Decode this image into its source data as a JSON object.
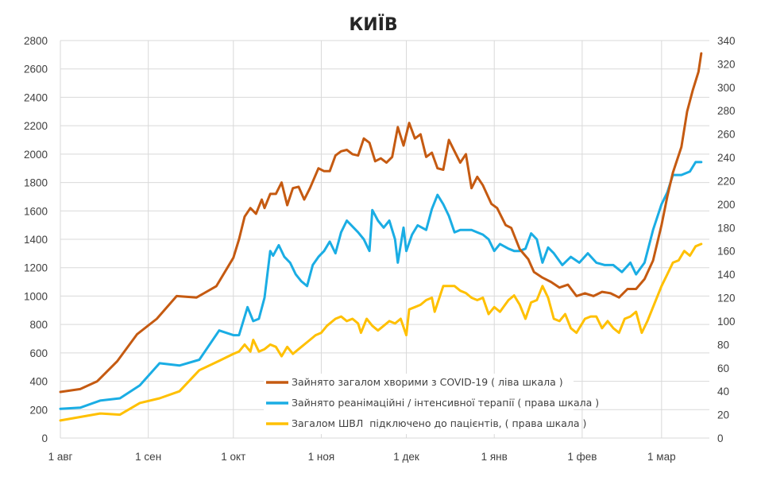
{
  "chart_data": {
    "type": "line",
    "title": "КИЇВ",
    "grid": true,
    "legend_placement": "bottom-center (inside plot)",
    "x_axis": {
      "type": "date",
      "range": [
        "2020-08-01",
        "2021-03-19"
      ],
      "ticks": [
        {
          "date": "2020-08-01",
          "label": "1 авг"
        },
        {
          "date": "2020-09-01",
          "label": "1 сен"
        },
        {
          "date": "2020-10-01",
          "label": "1 окт"
        },
        {
          "date": "2020-11-01",
          "label": "1 ноя"
        },
        {
          "date": "2020-12-01",
          "label": "1 дек"
        },
        {
          "date": "2021-01-01",
          "label": "1 янв"
        },
        {
          "date": "2021-02-01",
          "label": "1 фев"
        },
        {
          "date": "2021-03-01",
          "label": "1 мар"
        }
      ]
    },
    "y_left": {
      "range": [
        0,
        2800
      ],
      "ticks": [
        "0",
        "200",
        "400",
        "600",
        "800",
        "1000",
        "1200",
        "1400",
        "1600",
        "1800",
        "2000",
        "2200",
        "2400",
        "2600",
        "2800"
      ]
    },
    "y_right": {
      "range": [
        0,
        340
      ],
      "ticks": [
        "0",
        "20",
        "40",
        "60",
        "80",
        "100",
        "120",
        "140",
        "160",
        "180",
        "200",
        "220",
        "240",
        "260",
        "280",
        "300",
        "320",
        "340"
      ]
    },
    "series": [
      {
        "name": "Зайнято загалом хворими з COVID-19 ( ліва шкала )",
        "axis": "left",
        "color": "#C55A11",
        "points": [
          [
            "2020-08-01",
            325
          ],
          [
            "2020-08-08",
            345
          ],
          [
            "2020-08-14",
            400
          ],
          [
            "2020-08-21",
            540
          ],
          [
            "2020-08-28",
            730
          ],
          [
            "2020-09-04",
            840
          ],
          [
            "2020-09-11",
            1000
          ],
          [
            "2020-09-18",
            990
          ],
          [
            "2020-09-25",
            1070
          ],
          [
            "2020-10-01",
            1270
          ],
          [
            "2020-10-03",
            1400
          ],
          [
            "2020-10-05",
            1560
          ],
          [
            "2020-10-07",
            1620
          ],
          [
            "2020-10-09",
            1580
          ],
          [
            "2020-10-11",
            1680
          ],
          [
            "2020-10-12",
            1620
          ],
          [
            "2020-10-14",
            1720
          ],
          [
            "2020-10-16",
            1720
          ],
          [
            "2020-10-18",
            1800
          ],
          [
            "2020-10-20",
            1640
          ],
          [
            "2020-10-22",
            1760
          ],
          [
            "2020-10-24",
            1770
          ],
          [
            "2020-10-26",
            1680
          ],
          [
            "2020-10-28",
            1760
          ],
          [
            "2020-10-31",
            1900
          ],
          [
            "2020-11-02",
            1880
          ],
          [
            "2020-11-04",
            1880
          ],
          [
            "2020-11-06",
            1990
          ],
          [
            "2020-11-08",
            2020
          ],
          [
            "2020-11-10",
            2030
          ],
          [
            "2020-11-12",
            2000
          ],
          [
            "2020-11-14",
            1990
          ],
          [
            "2020-11-16",
            2110
          ],
          [
            "2020-11-18",
            2080
          ],
          [
            "2020-11-20",
            1950
          ],
          [
            "2020-11-22",
            1970
          ],
          [
            "2020-11-24",
            1940
          ],
          [
            "2020-11-26",
            1980
          ],
          [
            "2020-11-28",
            2190
          ],
          [
            "2020-11-30",
            2060
          ],
          [
            "2020-12-02",
            2220
          ],
          [
            "2020-12-04",
            2110
          ],
          [
            "2020-12-06",
            2140
          ],
          [
            "2020-12-08",
            1980
          ],
          [
            "2020-12-10",
            2010
          ],
          [
            "2020-12-12",
            1900
          ],
          [
            "2020-12-14",
            1890
          ],
          [
            "2020-12-16",
            2100
          ],
          [
            "2020-12-18",
            2020
          ],
          [
            "2020-12-20",
            1940
          ],
          [
            "2020-12-22",
            2000
          ],
          [
            "2020-12-24",
            1760
          ],
          [
            "2020-12-26",
            1840
          ],
          [
            "2020-12-28",
            1780
          ],
          [
            "2020-12-31",
            1650
          ],
          [
            "2021-01-02",
            1620
          ],
          [
            "2021-01-05",
            1500
          ],
          [
            "2021-01-07",
            1480
          ],
          [
            "2021-01-10",
            1330
          ],
          [
            "2021-01-13",
            1260
          ],
          [
            "2021-01-15",
            1170
          ],
          [
            "2021-01-18",
            1130
          ],
          [
            "2021-01-21",
            1100
          ],
          [
            "2021-01-24",
            1060
          ],
          [
            "2021-01-27",
            1080
          ],
          [
            "2021-01-30",
            1000
          ],
          [
            "2021-02-02",
            1020
          ],
          [
            "2021-02-05",
            1000
          ],
          [
            "2021-02-08",
            1030
          ],
          [
            "2021-02-11",
            1020
          ],
          [
            "2021-02-14",
            990
          ],
          [
            "2021-02-17",
            1050
          ],
          [
            "2021-02-20",
            1050
          ],
          [
            "2021-02-23",
            1120
          ],
          [
            "2021-02-26",
            1250
          ],
          [
            "2021-03-01",
            1500
          ],
          [
            "2021-03-03",
            1700
          ],
          [
            "2021-03-05",
            1870
          ],
          [
            "2021-03-08",
            2050
          ],
          [
            "2021-03-10",
            2300
          ],
          [
            "2021-03-12",
            2450
          ],
          [
            "2021-03-14",
            2580
          ],
          [
            "2021-03-15",
            2710
          ]
        ]
      },
      {
        "name": "Зайнято реанімаційні / інтенсивної терапії ( права шкала )",
        "axis": "right",
        "color": "#1AADE4",
        "points": [
          [
            "2020-08-01",
            25
          ],
          [
            "2020-08-08",
            26
          ],
          [
            "2020-08-15",
            32
          ],
          [
            "2020-08-22",
            34
          ],
          [
            "2020-08-29",
            45
          ],
          [
            "2020-09-05",
            64
          ],
          [
            "2020-09-12",
            62
          ],
          [
            "2020-09-19",
            67
          ],
          [
            "2020-09-26",
            92
          ],
          [
            "2020-10-01",
            88
          ],
          [
            "2020-10-03",
            88
          ],
          [
            "2020-10-06",
            112
          ],
          [
            "2020-10-08",
            100
          ],
          [
            "2020-10-10",
            102
          ],
          [
            "2020-10-12",
            120
          ],
          [
            "2020-10-14",
            160
          ],
          [
            "2020-10-15",
            156
          ],
          [
            "2020-10-17",
            165
          ],
          [
            "2020-10-19",
            155
          ],
          [
            "2020-10-21",
            150
          ],
          [
            "2020-10-23",
            140
          ],
          [
            "2020-10-25",
            134
          ],
          [
            "2020-10-27",
            130
          ],
          [
            "2020-10-29",
            148
          ],
          [
            "2020-10-31",
            155
          ],
          [
            "2020-11-02",
            160
          ],
          [
            "2020-11-04",
            168
          ],
          [
            "2020-11-06",
            158
          ],
          [
            "2020-11-08",
            176
          ],
          [
            "2020-11-10",
            186
          ],
          [
            "2020-11-14",
            176
          ],
          [
            "2020-11-16",
            170
          ],
          [
            "2020-11-18",
            160
          ],
          [
            "2020-11-19",
            195
          ],
          [
            "2020-11-21",
            186
          ],
          [
            "2020-11-23",
            180
          ],
          [
            "2020-11-25",
            186
          ],
          [
            "2020-11-27",
            170
          ],
          [
            "2020-11-28",
            150
          ],
          [
            "2020-11-30",
            180
          ],
          [
            "2020-12-01",
            160
          ],
          [
            "2020-12-03",
            174
          ],
          [
            "2020-12-05",
            182
          ],
          [
            "2020-12-08",
            178
          ],
          [
            "2020-12-10",
            196
          ],
          [
            "2020-12-12",
            208
          ],
          [
            "2020-12-14",
            200
          ],
          [
            "2020-12-16",
            190
          ],
          [
            "2020-12-18",
            176
          ],
          [
            "2020-12-20",
            178
          ],
          [
            "2020-12-22",
            178
          ],
          [
            "2020-12-24",
            178
          ],
          [
            "2020-12-26",
            176
          ],
          [
            "2020-12-28",
            174
          ],
          [
            "2020-12-30",
            170
          ],
          [
            "2021-01-01",
            160
          ],
          [
            "2021-01-03",
            166
          ],
          [
            "2021-01-06",
            162
          ],
          [
            "2021-01-08",
            160
          ],
          [
            "2021-01-10",
            160
          ],
          [
            "2021-01-12",
            162
          ],
          [
            "2021-01-14",
            175
          ],
          [
            "2021-01-16",
            170
          ],
          [
            "2021-01-18",
            150
          ],
          [
            "2021-01-20",
            163
          ],
          [
            "2021-01-22",
            158
          ],
          [
            "2021-01-25",
            148
          ],
          [
            "2021-01-28",
            155
          ],
          [
            "2021-01-31",
            150
          ],
          [
            "2021-02-03",
            158
          ],
          [
            "2021-02-06",
            150
          ],
          [
            "2021-02-09",
            148
          ],
          [
            "2021-02-12",
            148
          ],
          [
            "2021-02-15",
            142
          ],
          [
            "2021-02-18",
            150
          ],
          [
            "2021-02-20",
            140
          ],
          [
            "2021-02-23",
            150
          ],
          [
            "2021-02-26",
            178
          ],
          [
            "2021-03-01",
            200
          ],
          [
            "2021-03-03",
            210
          ],
          [
            "2021-03-05",
            225
          ],
          [
            "2021-03-08",
            225
          ],
          [
            "2021-03-11",
            228
          ],
          [
            "2021-03-13",
            236
          ],
          [
            "2021-03-15",
            236
          ]
        ]
      },
      {
        "name": "Загалом ШВЛ  підключено до пацієнтів, ( права шкала )",
        "axis": "right",
        "color": "#FFC000",
        "points": [
          [
            "2020-08-01",
            15
          ],
          [
            "2020-08-08",
            18
          ],
          [
            "2020-08-15",
            21
          ],
          [
            "2020-08-22",
            20
          ],
          [
            "2020-08-29",
            30
          ],
          [
            "2020-09-05",
            34
          ],
          [
            "2020-09-12",
            40
          ],
          [
            "2020-09-19",
            58
          ],
          [
            "2020-09-26",
            66
          ],
          [
            "2020-10-01",
            72
          ],
          [
            "2020-10-03",
            74
          ],
          [
            "2020-10-05",
            80
          ],
          [
            "2020-10-07",
            74
          ],
          [
            "2020-10-08",
            84
          ],
          [
            "2020-10-10",
            74
          ],
          [
            "2020-10-12",
            76
          ],
          [
            "2020-10-14",
            80
          ],
          [
            "2020-10-16",
            78
          ],
          [
            "2020-10-18",
            70
          ],
          [
            "2020-10-20",
            78
          ],
          [
            "2020-10-22",
            72
          ],
          [
            "2020-10-24",
            76
          ],
          [
            "2020-10-26",
            80
          ],
          [
            "2020-10-28",
            84
          ],
          [
            "2020-10-30",
            88
          ],
          [
            "2020-11-01",
            90
          ],
          [
            "2020-11-03",
            96
          ],
          [
            "2020-11-06",
            102
          ],
          [
            "2020-11-08",
            104
          ],
          [
            "2020-11-10",
            100
          ],
          [
            "2020-11-12",
            102
          ],
          [
            "2020-11-14",
            98
          ],
          [
            "2020-11-15",
            90
          ],
          [
            "2020-11-17",
            102
          ],
          [
            "2020-11-19",
            96
          ],
          [
            "2020-11-21",
            92
          ],
          [
            "2020-11-23",
            96
          ],
          [
            "2020-11-25",
            100
          ],
          [
            "2020-11-27",
            98
          ],
          [
            "2020-11-29",
            102
          ],
          [
            "2020-12-01",
            88
          ],
          [
            "2020-12-02",
            110
          ],
          [
            "2020-12-04",
            112
          ],
          [
            "2020-12-06",
            114
          ],
          [
            "2020-12-08",
            118
          ],
          [
            "2020-12-10",
            120
          ],
          [
            "2020-12-11",
            108
          ],
          [
            "2020-12-14",
            130
          ],
          [
            "2020-12-16",
            130
          ],
          [
            "2020-12-18",
            130
          ],
          [
            "2020-12-20",
            126
          ],
          [
            "2020-12-22",
            124
          ],
          [
            "2020-12-24",
            120
          ],
          [
            "2020-12-26",
            118
          ],
          [
            "2020-12-28",
            120
          ],
          [
            "2020-12-30",
            106
          ],
          [
            "2021-01-01",
            112
          ],
          [
            "2021-01-03",
            108
          ],
          [
            "2021-01-06",
            118
          ],
          [
            "2021-01-08",
            122
          ],
          [
            "2021-01-10",
            114
          ],
          [
            "2021-01-12",
            102
          ],
          [
            "2021-01-14",
            116
          ],
          [
            "2021-01-16",
            118
          ],
          [
            "2021-01-18",
            130
          ],
          [
            "2021-01-20",
            120
          ],
          [
            "2021-01-22",
            102
          ],
          [
            "2021-01-24",
            100
          ],
          [
            "2021-01-26",
            106
          ],
          [
            "2021-01-28",
            94
          ],
          [
            "2021-01-30",
            90
          ],
          [
            "2021-02-02",
            102
          ],
          [
            "2021-02-04",
            104
          ],
          [
            "2021-02-06",
            104
          ],
          [
            "2021-02-08",
            94
          ],
          [
            "2021-02-10",
            100
          ],
          [
            "2021-02-12",
            94
          ],
          [
            "2021-02-14",
            90
          ],
          [
            "2021-02-16",
            102
          ],
          [
            "2021-02-18",
            104
          ],
          [
            "2021-02-20",
            108
          ],
          [
            "2021-02-22",
            90
          ],
          [
            "2021-02-24",
            100
          ],
          [
            "2021-02-26",
            112
          ],
          [
            "2021-03-01",
            130
          ],
          [
            "2021-03-03",
            140
          ],
          [
            "2021-03-05",
            150
          ],
          [
            "2021-03-07",
            152
          ],
          [
            "2021-03-09",
            160
          ],
          [
            "2021-03-11",
            156
          ],
          [
            "2021-03-13",
            164
          ],
          [
            "2021-03-15",
            166
          ]
        ]
      }
    ]
  }
}
